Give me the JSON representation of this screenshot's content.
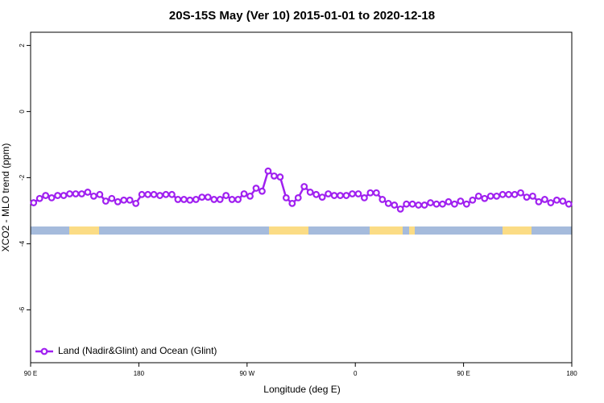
{
  "chart_data": {
    "type": "line",
    "title": "20S-15S May (Ver 10)   2015-01-01 to 2020-12-18",
    "x_label": "Longitude (deg E)",
    "y_label": "XCO2 - MLO trend (ppm)",
    "xlim": [
      90,
      540
    ],
    "ylim": [
      -7.6,
      2.4
    ],
    "xticks": [
      {
        "value": 90,
        "label": "90 E"
      },
      180,
      {
        "value": 270,
        "label": "90 W"
      },
      {
        "value": 360,
        "label": "0"
      },
      {
        "value": 450,
        "label": "90 E"
      },
      {
        "value": 540,
        "label": "180"
      }
    ],
    "yticks": [
      2,
      0,
      -2,
      -4,
      -6
    ],
    "legend": "bottom-left",
    "grid": false,
    "x": [
      92.5,
      97.5,
      102.5,
      107.5,
      112.5,
      117.5,
      122.5,
      127.5,
      132.5,
      137.5,
      142.5,
      147.5,
      152.5,
      157.5,
      162.5,
      167.5,
      172.5,
      177.5,
      182.5,
      187.5,
      192.5,
      197.5,
      202.5,
      207.5,
      212.5,
      217.5,
      222.5,
      227.5,
      232.5,
      237.5,
      242.5,
      247.5,
      252.5,
      257.5,
      262.5,
      267.5,
      272.5,
      277.5,
      282.5,
      287.5,
      292.5,
      297.5,
      302.5,
      307.5,
      312.5,
      317.5,
      322.5,
      327.5,
      332.5,
      337.5,
      342.5,
      347.5,
      352.5,
      357.5,
      362.5,
      367.5,
      372.5,
      377.5,
      382.5,
      387.5,
      392.5,
      397.5,
      402.5,
      407.5,
      412.5,
      417.5,
      422.5,
      427.5,
      432.5,
      437.5,
      442.5,
      447.5,
      452.5,
      457.5,
      462.5,
      467.5,
      472.5,
      477.5,
      482.5,
      487.5,
      492.5,
      497.5,
      502.5,
      507.5,
      512.5,
      517.5,
      522.5,
      527.5,
      532.5,
      537.5
    ],
    "series": [
      {
        "name": "Land (Nadir&Glint) and Ocean (Glint)",
        "color": "#a020f0",
        "values": [
          -2.76,
          -2.63,
          -2.54,
          -2.61,
          -2.54,
          -2.54,
          -2.49,
          -2.49,
          -2.49,
          -2.44,
          -2.56,
          -2.51,
          -2.71,
          -2.63,
          -2.73,
          -2.68,
          -2.68,
          -2.78,
          -2.51,
          -2.51,
          -2.51,
          -2.54,
          -2.51,
          -2.51,
          -2.66,
          -2.66,
          -2.68,
          -2.66,
          -2.59,
          -2.59,
          -2.66,
          -2.66,
          -2.54,
          -2.66,
          -2.66,
          -2.49,
          -2.56,
          -2.32,
          -2.41,
          -1.8,
          -1.95,
          -1.98,
          -2.61,
          -2.78,
          -2.61,
          -2.27,
          -2.44,
          -2.51,
          -2.59,
          -2.49,
          -2.54,
          -2.54,
          -2.54,
          -2.49,
          -2.49,
          -2.61,
          -2.46,
          -2.46,
          -2.66,
          -2.78,
          -2.83,
          -2.95,
          -2.8,
          -2.8,
          -2.83,
          -2.83,
          -2.76,
          -2.8,
          -2.8,
          -2.73,
          -2.8,
          -2.71,
          -2.8,
          -2.68,
          -2.56,
          -2.63,
          -2.56,
          -2.56,
          -2.51,
          -2.51,
          -2.51,
          -2.46,
          -2.59,
          -2.56,
          -2.73,
          -2.66,
          -2.76,
          -2.68,
          -2.71,
          -2.8
        ]
      }
    ]
  }
}
